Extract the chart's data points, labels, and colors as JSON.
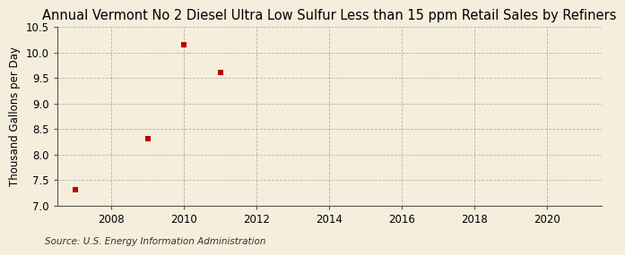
{
  "title": "Annual Vermont No 2 Diesel Ultra Low Sulfur Less than 15 ppm Retail Sales by Refiners",
  "ylabel": "Thousand Gallons per Day",
  "source": "Source: U.S. Energy Information Administration",
  "x_data": [
    2007,
    2009,
    2010,
    2011
  ],
  "y_data": [
    7.3,
    8.3,
    10.15,
    9.6
  ],
  "xlim": [
    2006.5,
    2021.5
  ],
  "ylim": [
    7.0,
    10.5
  ],
  "xticks": [
    2008,
    2010,
    2012,
    2014,
    2016,
    2018,
    2020
  ],
  "yticks": [
    7.0,
    7.5,
    8.0,
    8.5,
    9.0,
    9.5,
    10.0,
    10.5
  ],
  "marker_color": "#bb0000",
  "marker_size": 4,
  "bg_color": "#f5eedc",
  "grid_color": "#999999",
  "title_fontsize": 10.5,
  "axis_label_fontsize": 8.5,
  "tick_fontsize": 8.5,
  "source_fontsize": 7.5
}
